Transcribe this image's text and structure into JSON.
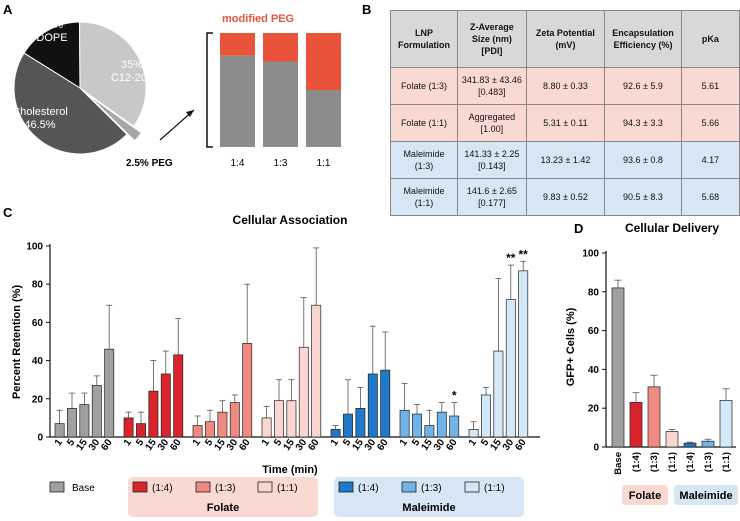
{
  "panel_labels": {
    "a": "A",
    "b": "B",
    "c": "C",
    "d": "D"
  },
  "panel_a": {
    "pie": [
      {
        "label": "16%",
        "sublabel": "DOPE",
        "value": 16,
        "color": "#111111",
        "text_color": "#ffffff"
      },
      {
        "label": "35%",
        "sublabel": "C12-200",
        "value": 35,
        "color": "#c8c8c8",
        "text_color": "#ffffff"
      },
      {
        "label": "2.5% PEG",
        "sublabel": "",
        "value": 2.5,
        "color": "#a6a6a6",
        "text_color": "#111111"
      },
      {
        "label": "Cholesterol",
        "sublabel": "46.5%",
        "value": 46.5,
        "color": "#555555",
        "text_color": "#ffffff"
      }
    ],
    "modified_peg_label": "modified PEG",
    "stack": {
      "categories": [
        "1:4",
        "1:3",
        "1:1"
      ],
      "modified_fraction": [
        0.2,
        0.25,
        0.5
      ],
      "colors": {
        "modified": "#e8533a",
        "base": "#8c8c8c"
      }
    }
  },
  "panel_b": {
    "headers": [
      "LNP Formulation",
      "Z-Average Size (nm) [PDI]",
      "Zeta Potential (mV)",
      "Encapsulation Efficiency (%)",
      "pKa"
    ],
    "rows": [
      {
        "cells": [
          "Folate (1:3)",
          "341.83 ± 43.46 [0.483]",
          "8.80 ± 0.33",
          "92.6 ± 5.9",
          "5.61"
        ],
        "tone": "pink"
      },
      {
        "cells": [
          "Folate (1:1)",
          "Aggregated [1.00]",
          "5.31 ± 0.11",
          "94.3 ± 3.3",
          "5.66"
        ],
        "tone": "pink"
      },
      {
        "cells": [
          "Maleimide (1:3)",
          "141.33 ± 2.25 [0.143]",
          "13.23 ± 1.42",
          "93.6 ± 0.8",
          "4.17"
        ],
        "tone": "blue"
      },
      {
        "cells": [
          "Maleimide (1:1)",
          "141.6 ± 2.65 [0.177]",
          "9.83 ± 0.52",
          "90.5 ± 8.3",
          "5.68"
        ],
        "tone": "blue"
      }
    ]
  },
  "chart_data": [
    {
      "type": "bar",
      "title": "Cellular Association",
      "xlabel": "Time (min)",
      "ylabel": "Percent Retention (%)",
      "ylim": [
        0,
        100
      ],
      "yticks": [
        0,
        20,
        40,
        60,
        80,
        100
      ],
      "categories": [
        "1",
        "5",
        "15",
        "30",
        "60"
      ],
      "series": [
        {
          "name": "Base",
          "color": "#a0a0a0",
          "values": [
            7,
            15,
            17,
            27,
            46
          ],
          "errors": [
            7,
            8,
            6,
            5,
            23
          ],
          "sig": [
            "",
            "",
            "",
            "",
            ""
          ]
        },
        {
          "name": "Folate (1:4)",
          "color": "#d9242b",
          "values": [
            10,
            7,
            24,
            33,
            43
          ],
          "errors": [
            3,
            6,
            16,
            12,
            19
          ],
          "sig": [
            "",
            "",
            "",
            "",
            ""
          ]
        },
        {
          "name": "Folate (1:3)",
          "color": "#f08a80",
          "values": [
            6,
            8,
            13,
            18,
            49
          ],
          "errors": [
            5,
            6,
            6,
            4,
            31
          ],
          "sig": [
            "",
            "",
            "",
            "",
            ""
          ]
        },
        {
          "name": "Folate (1:1)",
          "color": "#fbd5cf",
          "values": [
            10,
            19,
            19,
            47,
            69
          ],
          "errors": [
            6,
            11,
            11,
            26,
            30
          ],
          "sig": [
            "",
            "",
            "",
            "",
            ""
          ]
        },
        {
          "name": "Maleimide (1:4)",
          "color": "#1f78c8",
          "values": [
            4,
            12,
            15,
            33,
            35
          ],
          "errors": [
            2,
            18,
            11,
            25,
            20
          ],
          "sig": [
            "",
            "",
            "",
            "",
            ""
          ]
        },
        {
          "name": "Maleimide (1:3)",
          "color": "#6fb3e8",
          "values": [
            14,
            12,
            6,
            13,
            11
          ],
          "errors": [
            14,
            5,
            8,
            5,
            7
          ],
          "sig": [
            "",
            "",
            "",
            "",
            "*"
          ]
        },
        {
          "name": "Maleimide (1:1)",
          "color": "#d3e8f8",
          "values": [
            4,
            22,
            45,
            72,
            87
          ],
          "errors": [
            4,
            4,
            38,
            18,
            5
          ],
          "sig": [
            "",
            "",
            "",
            "**",
            "**"
          ]
        }
      ]
    },
    {
      "type": "bar",
      "title": "Cellular Delivery",
      "xlabel": "",
      "ylabel": "GFP+ Cells (%)",
      "ylim": [
        0,
        100
      ],
      "yticks": [
        0,
        20,
        40,
        60,
        80,
        100
      ],
      "categories": [
        "Base",
        "(1:4)",
        "(1:3)",
        "(1:1)",
        "(1:4)",
        "(1:3)",
        "(1:1)"
      ],
      "values": [
        82,
        23,
        31,
        8,
        2,
        3,
        24
      ],
      "errors": [
        4,
        5,
        6,
        1,
        0.5,
        1,
        6
      ],
      "colors": [
        "#a0a0a0",
        "#d9242b",
        "#f08a80",
        "#fbd5cf",
        "#1f78c8",
        "#6fb3e8",
        "#d3e8f8"
      ]
    }
  ],
  "legend_c": {
    "base_label": "Base",
    "ratio_labels": [
      "(1:4)",
      "(1:3)",
      "(1:1)"
    ],
    "folate_label": "Folate",
    "maleimide_label": "Maleimide",
    "folate_bg": "#fbd9d3",
    "maleimide_bg": "#d6e6f4"
  },
  "panel_d_groups": {
    "folate": "Folate",
    "maleimide": "Maleimide"
  }
}
